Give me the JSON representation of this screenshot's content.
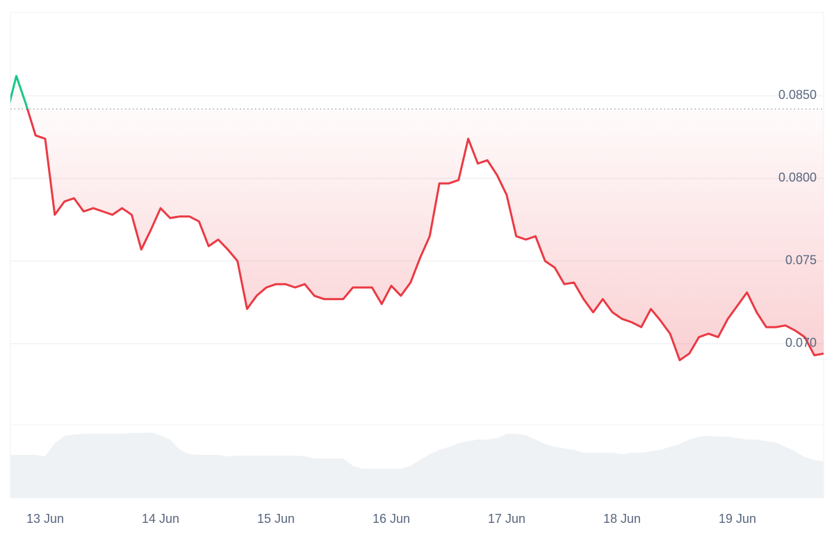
{
  "chart_data": {
    "type": "line",
    "x": [
      null,
      null,
      null,
      null,
      "13 Jun",
      null,
      null,
      null,
      null,
      null,
      null,
      null,
      null,
      null,
      null,
      null,
      "14 Jun",
      null,
      null,
      null,
      null,
      null,
      null,
      null,
      null,
      null,
      null,
      null,
      "15 Jun",
      null,
      null,
      null,
      null,
      null,
      null,
      null,
      null,
      null,
      null,
      null,
      "16 Jun",
      null,
      null,
      null,
      null,
      null,
      null,
      null,
      null,
      null,
      null,
      null,
      "17 Jun",
      null,
      null,
      null,
      null,
      null,
      null,
      null,
      null,
      null,
      null,
      null,
      "18 Jun",
      null,
      null,
      null,
      null,
      null,
      null,
      null,
      null,
      null,
      null,
      null,
      "19 Jun",
      null,
      null,
      null,
      null,
      null,
      null,
      null,
      null,
      null
    ],
    "series": [
      {
        "color": "#ea3943",
        "color_above": "#16c784",
        "values": [
          0.0839,
          0.0862,
          0.0845,
          0.0826,
          0.0824,
          0.0778,
          0.0786,
          0.0788,
          0.078,
          0.0782,
          0.078,
          0.0778,
          0.0782,
          0.0778,
          0.0757,
          0.0769,
          0.0782,
          0.0776,
          0.0777,
          0.0777,
          0.0774,
          0.0759,
          0.0763,
          0.0757,
          0.075,
          0.0721,
          0.0729,
          0.0734,
          0.0736,
          0.0736,
          0.0734,
          0.0736,
          0.0729,
          0.0727,
          0.0727,
          0.0727,
          0.0734,
          0.0734,
          0.0734,
          0.0724,
          0.0735,
          0.0729,
          0.0737,
          0.0752,
          0.0765,
          0.0797,
          0.0797,
          0.0799,
          0.0824,
          0.0809,
          0.0811,
          0.0802,
          0.079,
          0.0765,
          0.0763,
          0.0765,
          0.075,
          0.0746,
          0.0736,
          0.0737,
          0.0727,
          0.0719,
          0.0727,
          0.0719,
          0.0715,
          0.0713,
          0.071,
          0.0721,
          0.0714,
          0.0706,
          0.069,
          0.0694,
          0.0704,
          0.0706,
          0.0704,
          0.0715,
          0.0723,
          0.0731,
          0.0719,
          0.071,
          0.071,
          0.0711,
          0.0708,
          0.0704,
          0.0693,
          0.0694
        ]
      }
    ],
    "baseline": 0.0842,
    "ylim": [
      0.06508,
      0.09004
    ],
    "yticks": [
      {
        "value": 0.07,
        "label": "0.070"
      },
      0.075,
      {
        "value": 0.08,
        "label": "0.0800"
      },
      {
        "value": 0.085,
        "label": "0.0850"
      }
    ],
    "grid": true,
    "volume": {
      "color": "#eff2f5",
      "ylim": [
        0,
        100
      ],
      "values": [
        59,
        59,
        59,
        59,
        57,
        75,
        85,
        87,
        88,
        88,
        88,
        88,
        88,
        89,
        89,
        90,
        86,
        80,
        66,
        60,
        59,
        59,
        59,
        57,
        58,
        58,
        58,
        58,
        58,
        58,
        58,
        57,
        54,
        54,
        54,
        54,
        44,
        40,
        40,
        40,
        40,
        40,
        44,
        52,
        60,
        66,
        70,
        75,
        78,
        80,
        80,
        82,
        88,
        88,
        86,
        80,
        74,
        70,
        68,
        66,
        62,
        62,
        62,
        62,
        60,
        62,
        62,
        64,
        66,
        70,
        74,
        80,
        84,
        85,
        84,
        84,
        82,
        80,
        80,
        78,
        76,
        70,
        64,
        56,
        52,
        50
      ]
    }
  }
}
